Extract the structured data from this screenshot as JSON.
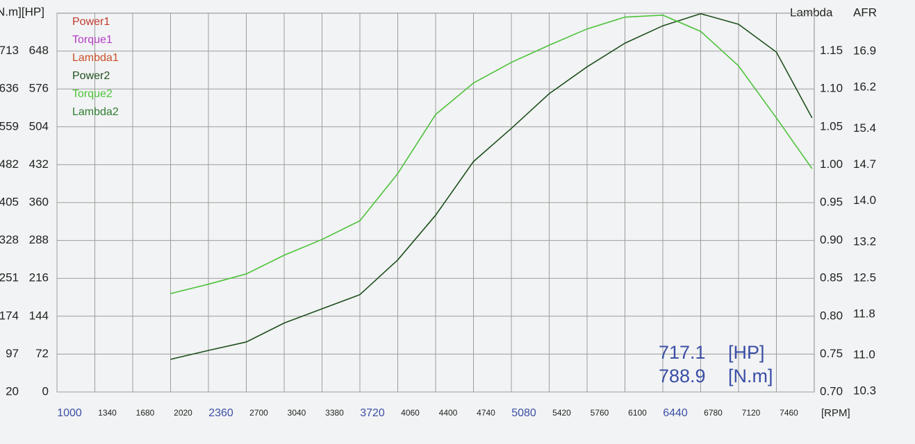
{
  "chart_data": {
    "type": "line",
    "y_label": "N.m][HP]",
    "y2_label": "Lambda",
    "y3_label": "AFR",
    "x_label": "[RPM]",
    "grid": true,
    "x": [
      2020,
      2360,
      2700,
      3040,
      3380,
      3720,
      4060,
      4400,
      4740,
      5080,
      5420,
      5760,
      6100,
      6440,
      6780,
      7120,
      7460,
      7780
    ],
    "xlim": [
      1000,
      7800
    ],
    "xticks": [
      1000,
      1340,
      1680,
      2020,
      2360,
      2700,
      3040,
      3380,
      3720,
      4060,
      4400,
      4740,
      5080,
      5420,
      5760,
      6100,
      6440,
      6780,
      7120,
      7460
    ],
    "ylim": [
      0,
      720
    ],
    "yticks": [
      0,
      72,
      144,
      216,
      288,
      360,
      432,
      504,
      576,
      648
    ],
    "y_nm_lim": [
      20,
      790
    ],
    "y_nm_ticks": [
      20,
      97,
      174,
      251,
      328,
      405,
      482,
      559,
      636,
      713
    ],
    "y2lim": [
      0.7,
      1.2
    ],
    "y2ticks": [
      {
        "value": 0.7,
        "label": "0.70"
      },
      0.75,
      {
        "value": 0.8,
        "label": "0.80"
      },
      0.85,
      {
        "value": 0.9,
        "label": "0.90"
      },
      0.95,
      {
        "value": 1.0,
        "label": "1.00"
      },
      1.05,
      {
        "value": 1.1,
        "label": "1.10"
      },
      1.15
    ],
    "y3lim": [
      10.29,
      17.64
    ],
    "y3ticks": [
      10.3,
      {
        "value": 11.0,
        "label": "11.0"
      },
      11.8,
      12.5,
      13.2,
      {
        "value": 14.0,
        "label": "14.0"
      },
      14.7,
      15.4,
      16.2,
      16.9
    ],
    "series": [
      {
        "name": "Power1",
        "color": "#c0392b"
      },
      {
        "name": "Torque1",
        "color": "#b23cc4"
      },
      {
        "name": "Lambda1",
        "color": "#c8502a"
      },
      {
        "name": "Power2",
        "color": "#1d4f1d",
        "values": [
          62,
          79,
          95,
          131,
          158,
          185,
          251,
          336,
          438,
          501,
          567,
          618,
          663,
          696,
          719,
          699,
          646,
          521
        ]
      },
      {
        "name": "Torque2",
        "color": "#4cc23a",
        "axis": "y_nm",
        "values": [
          220,
          239,
          260,
          298,
          330,
          368,
          464,
          584,
          648,
          690,
          725,
          758,
          782,
          786,
          753,
          683,
          577,
          474
        ]
      },
      {
        "name": "Lambda2",
        "color": "#2e7d32"
      }
    ],
    "readouts": [
      {
        "value": 717.1,
        "unit": "[HP]"
      },
      {
        "value": 788.9,
        "unit": "[N.m]"
      }
    ]
  }
}
